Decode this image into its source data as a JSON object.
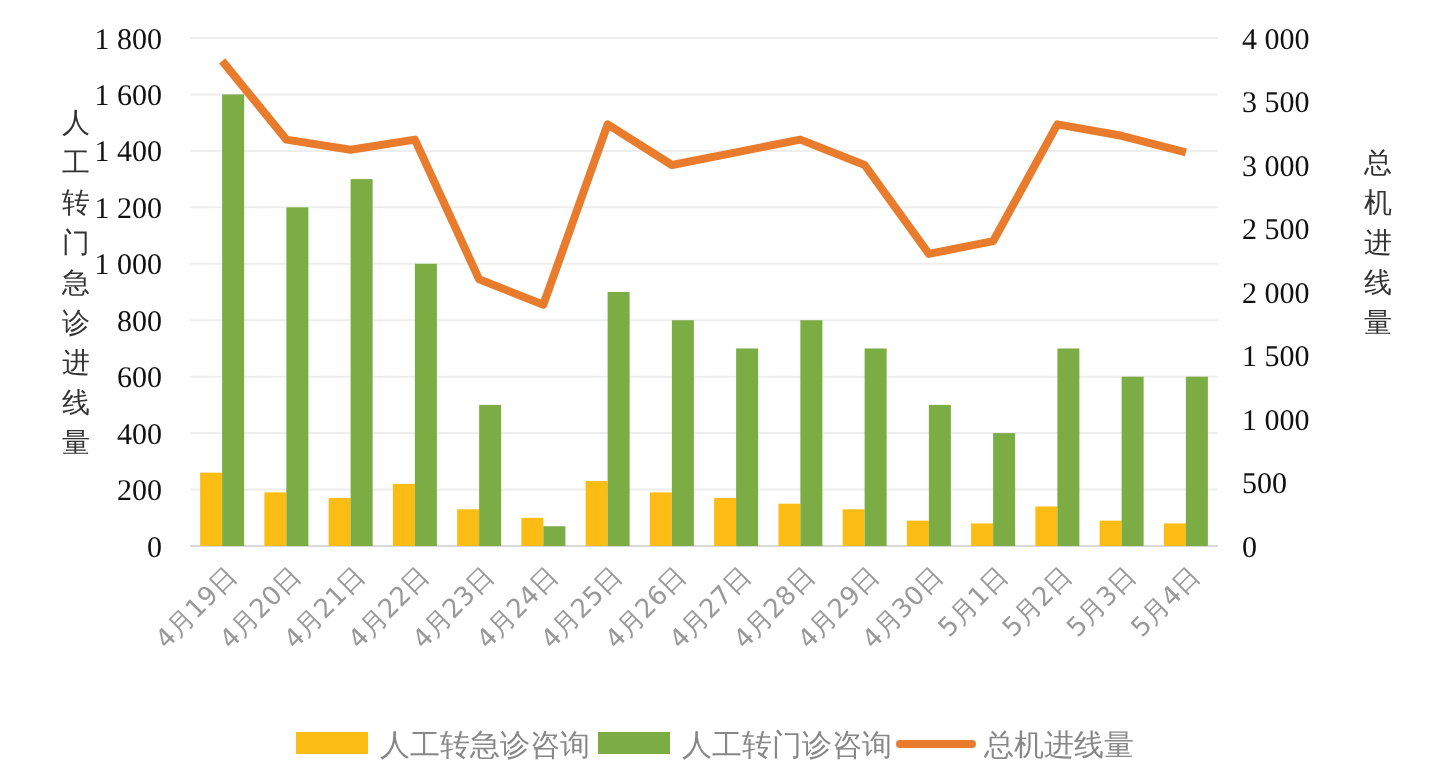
{
  "chart_data": {
    "type": "bar",
    "categories": [
      "4月19日",
      "4月20日",
      "4月21日",
      "4月22日",
      "4月23日",
      "4月24日",
      "4月25日",
      "4月26日",
      "4月27日",
      "4月28日",
      "4月29日",
      "4月30日",
      "5月1日",
      "5月2日",
      "5月3日",
      "5月4日"
    ],
    "ylabel": "人工转门急诊进线量",
    "y2label": "总机进线量",
    "ylim": [
      0,
      1800
    ],
    "yticks": [
      0,
      {
        "value": 200,
        "label": "200"
      },
      {
        "value": 400,
        "label": "400"
      },
      {
        "value": 600,
        "label": "600"
      },
      {
        "value": 800,
        "label": "800"
      },
      {
        "value": 1000,
        "label": "1 000"
      },
      {
        "value": 1200,
        "label": "1 200"
      },
      {
        "value": 1400,
        "label": "1 400"
      },
      {
        "value": 1600,
        "label": "1 600"
      },
      {
        "value": 1800,
        "label": "1 800"
      }
    ],
    "y2lim": [
      0,
      4000
    ],
    "y2ticks": [
      0,
      500,
      {
        "value": 1000,
        "label": "1 000"
      },
      {
        "value": 1500,
        "label": "1 500"
      },
      {
        "value": 2000,
        "label": "2 000"
      },
      {
        "value": 2500,
        "label": "2 500"
      },
      {
        "value": 3000,
        "label": "3 000"
      },
      {
        "value": 3500,
        "label": "3 500"
      },
      {
        "value": 4000,
        "label": "4 000"
      }
    ],
    "grid": "y",
    "legend": "bottom",
    "series": [
      {
        "name": "人工转急诊咨询",
        "color": "#fbbd14",
        "values": [
          260,
          190,
          170,
          220,
          130,
          100,
          230,
          190,
          170,
          150,
          130,
          90,
          80,
          140,
          90,
          80
        ]
      },
      {
        "name": "人工转门诊咨询",
        "color": "#7cad45",
        "values": [
          1600,
          1200,
          1300,
          1000,
          500,
          70,
          900,
          800,
          700,
          800,
          700,
          500,
          400,
          700,
          600,
          600
        ]
      },
      {
        "name": "总机进线量",
        "type": "line",
        "axis": "y2",
        "color": "#e97b2d",
        "values": [
          3820,
          3200,
          3120,
          3200,
          2100,
          1900,
          3320,
          3000,
          3100,
          3200,
          3000,
          2300,
          2400,
          3320,
          3230,
          3100
        ]
      }
    ]
  }
}
